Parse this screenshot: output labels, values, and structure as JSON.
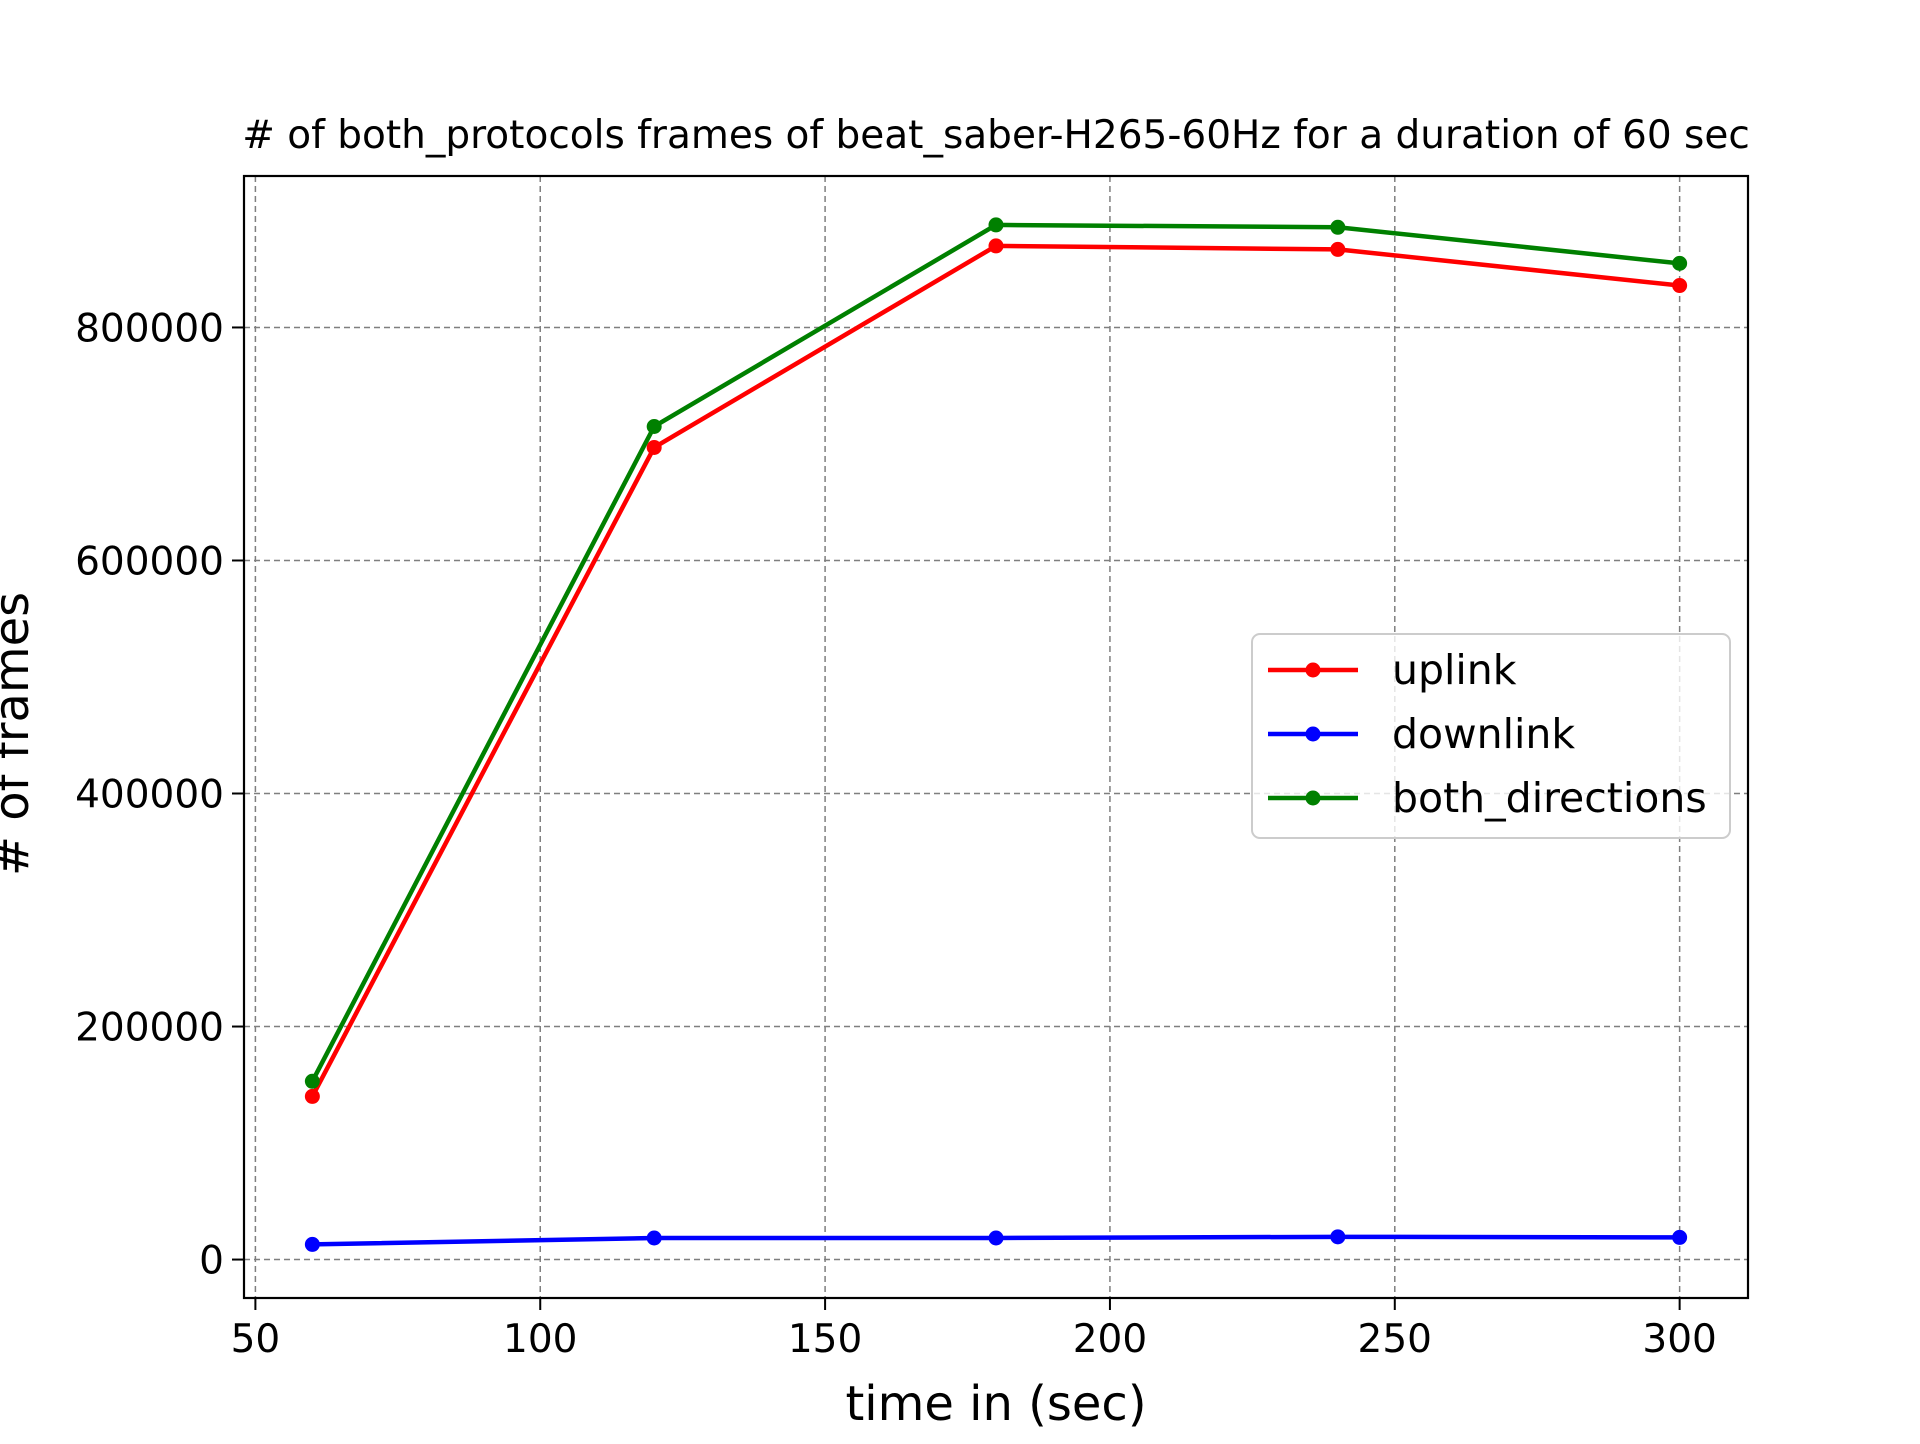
{
  "chart_data": {
    "type": "line",
    "title": "# of both_protocols frames of beat_saber-H265-60Hz for a duration of 60 sec",
    "xlabel": "time in (sec)",
    "ylabel": "# of frames",
    "x": [
      60,
      120,
      180,
      240,
      300
    ],
    "xlim": [
      48,
      312
    ],
    "ylim": [
      -33000,
      930000
    ],
    "xticks": [
      50,
      100,
      150,
      200,
      250,
      300
    ],
    "yticks": [
      0,
      200000,
      400000,
      600000,
      800000
    ],
    "grid": true,
    "legend_position": "center-right",
    "series": [
      {
        "name": "uplink",
        "color": "#ff0000",
        "values": [
          140000,
          697000,
          870000,
          867000,
          836000
        ]
      },
      {
        "name": "downlink",
        "color": "#0000ff",
        "values": [
          13000,
          18500,
          18500,
          19500,
          19000
        ]
      },
      {
        "name": "both_directions",
        "color": "#008000",
        "values": [
          153000,
          715000,
          888000,
          886000,
          855000
        ]
      }
    ]
  }
}
